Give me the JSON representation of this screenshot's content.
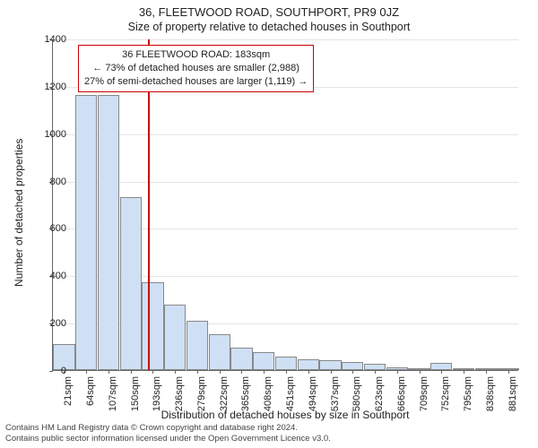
{
  "chart": {
    "type": "histogram",
    "title_main": "36, FLEETWOOD ROAD, SOUTHPORT, PR9 0JZ",
    "subtitle": "Size of property relative to detached houses in Southport",
    "yaxis_label": "Number of detached properties",
    "xaxis_label": "Distribution of detached houses by size in Southport",
    "background_color": "#ffffff",
    "grid_color": "#e5e5e5",
    "axis_color": "#666666",
    "text_color": "#222222",
    "bar_fill_color": "#cfe0f5",
    "bar_stroke_color": "#888888",
    "marker_line_color": "#cc0000",
    "info_box_border_color": "#cc0000",
    "title_fontsize": 13,
    "subtitle_fontsize": 12.5,
    "axis_label_fontsize": 12,
    "tick_fontsize": 11,
    "info_box_fontsize": 11,
    "footer_fontsize": 9.5,
    "ylim": [
      0,
      1400
    ],
    "ytick_step": 200,
    "yticks": [
      0,
      200,
      400,
      600,
      800,
      1000,
      1200,
      1400
    ],
    "x_categories": [
      "21sqm",
      "64sqm",
      "107sqm",
      "150sqm",
      "193sqm",
      "236sqm",
      "279sqm",
      "322sqm",
      "365sqm",
      "408sqm",
      "451sqm",
      "494sqm",
      "537sqm",
      "580sqm",
      "623sqm",
      "666sqm",
      "709sqm",
      "752sqm",
      "795sqm",
      "838sqm",
      "881sqm"
    ],
    "bar_values": [
      110,
      1160,
      1160,
      730,
      370,
      275,
      210,
      150,
      95,
      75,
      55,
      45,
      40,
      35,
      25,
      10,
      8,
      30,
      5,
      5,
      5
    ],
    "marker_value_sqm": 183,
    "info_box": {
      "line1": "36 FLEETWOOD ROAD: 183sqm",
      "line2": "← 73% of detached houses are smaller (2,988)",
      "line3": "27% of semi-detached houses are larger (1,119) →"
    },
    "footer_line1": "Contains HM Land Registry data © Crown copyright and database right 2024.",
    "footer_line2": "Contains public sector information licensed under the Open Government Licence v3.0."
  }
}
